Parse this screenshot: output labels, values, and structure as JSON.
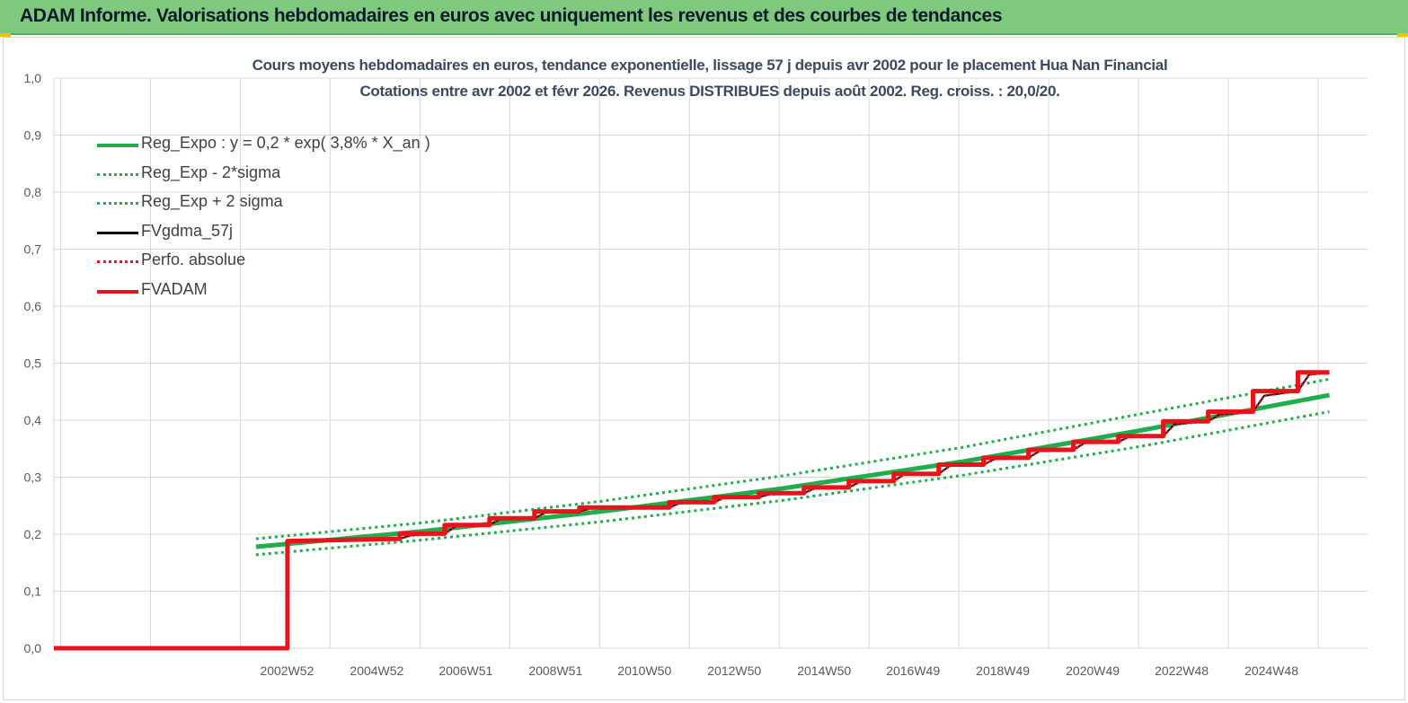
{
  "header": {
    "title": "ADAM Informe. Valorisations hebdomadaires en euros avec uniquement les revenus et des courbes de tendances"
  },
  "chart_data": {
    "type": "line",
    "title": "Cours moyens hebdomadaires en euros, tendance exponentielle, lissage 57 j depuis avr 2002 pour le placement Hua Nan Financial",
    "subtitle": "Cotations entre avr 2002 et févr 2026. Revenus DISTRIBUES depuis août 2002. Reg. croiss. : 20,0/20.",
    "xlabel": "",
    "ylabel": "",
    "ylim": [
      0,
      1
    ],
    "yticks": [
      "0,0",
      "0,1",
      "0,2",
      "0,3",
      "0,4",
      "0,5",
      "0,6",
      "0,7",
      "0,8",
      "0,9",
      "1,0"
    ],
    "xlim": [
      1997.8,
      2027.05
    ],
    "xticks": [
      {
        "x": 2002.99,
        "label": "2002W52"
      },
      {
        "x": 2004.99,
        "label": "2004W52"
      },
      {
        "x": 2006.97,
        "label": "2006W51"
      },
      {
        "x": 2008.97,
        "label": "2008W51"
      },
      {
        "x": 2010.95,
        "label": "2010W50"
      },
      {
        "x": 2012.95,
        "label": "2012W50"
      },
      {
        "x": 2014.95,
        "label": "2014W50"
      },
      {
        "x": 2016.93,
        "label": "2016W49"
      },
      {
        "x": 2018.93,
        "label": "2018W49"
      },
      {
        "x": 2020.93,
        "label": "2020W49"
      },
      {
        "x": 2022.91,
        "label": "2022W48"
      },
      {
        "x": 2024.91,
        "label": "2024W48"
      }
    ],
    "grid": true,
    "legend_position": "top-left",
    "series": [
      {
        "name": "Reg_Expo : y = 0,2 * exp( 3,8% *  X_an )",
        "color": "#1fae4b",
        "style": "solid-thick",
        "points": [
          [
            2002.3,
            0.178
          ],
          [
            2006,
            0.205
          ],
          [
            2010,
            0.24
          ],
          [
            2014,
            0.28
          ],
          [
            2018,
            0.327
          ],
          [
            2022,
            0.382
          ],
          [
            2026.2,
            0.444
          ]
        ]
      },
      {
        "name": "Reg_Exp - 2*sigma",
        "color": "#1fae4b",
        "style": "dotted",
        "points": [
          [
            2002.3,
            0.164
          ],
          [
            2006,
            0.19
          ],
          [
            2010,
            0.222
          ],
          [
            2014,
            0.259
          ],
          [
            2018,
            0.303
          ],
          [
            2022,
            0.354
          ],
          [
            2026.2,
            0.415
          ]
        ]
      },
      {
        "name": "Reg_Exp + 2 sigma",
        "color": "#1fae4b",
        "style": "dotted",
        "points": [
          [
            2002.3,
            0.192
          ],
          [
            2006,
            0.22
          ],
          [
            2010,
            0.258
          ],
          [
            2014,
            0.302
          ],
          [
            2018,
            0.352
          ],
          [
            2022,
            0.411
          ],
          [
            2026.2,
            0.472
          ]
        ]
      },
      {
        "name": "FVgdma_57j",
        "color": "#000000",
        "style": "solid",
        "points": [
          [
            1997.8,
            0
          ],
          [
            2003.0,
            0
          ],
          [
            2003.0,
            0.188
          ],
          [
            2005.5,
            0.192
          ],
          [
            2005.75,
            0.198
          ],
          [
            2006.5,
            0.201
          ],
          [
            2006.75,
            0.214
          ],
          [
            2007.5,
            0.216
          ],
          [
            2007.75,
            0.227
          ],
          [
            2008.5,
            0.228
          ],
          [
            2008.75,
            0.238
          ],
          [
            2009.5,
            0.24
          ],
          [
            2009.75,
            0.245
          ],
          [
            2011.5,
            0.247
          ],
          [
            2011.75,
            0.255
          ],
          [
            2012.5,
            0.256
          ],
          [
            2012.75,
            0.265
          ],
          [
            2013.5,
            0.265
          ],
          [
            2013.75,
            0.27
          ],
          [
            2014.5,
            0.272
          ],
          [
            2014.75,
            0.281
          ],
          [
            2015.5,
            0.282
          ],
          [
            2015.75,
            0.292
          ],
          [
            2016.5,
            0.293
          ],
          [
            2016.75,
            0.306
          ],
          [
            2017.5,
            0.306
          ],
          [
            2017.75,
            0.32
          ],
          [
            2018.5,
            0.322
          ],
          [
            2018.75,
            0.332
          ],
          [
            2019.5,
            0.334
          ],
          [
            2019.75,
            0.346
          ],
          [
            2020.5,
            0.348
          ],
          [
            2020.75,
            0.36
          ],
          [
            2021.5,
            0.362
          ],
          [
            2021.75,
            0.371
          ],
          [
            2022.5,
            0.372
          ],
          [
            2022.75,
            0.393
          ],
          [
            2023.5,
            0.398
          ],
          [
            2023.75,
            0.41
          ],
          [
            2024.5,
            0.415
          ],
          [
            2024.75,
            0.443
          ],
          [
            2025.5,
            0.451
          ],
          [
            2025.75,
            0.48
          ],
          [
            2026.2,
            0.484
          ]
        ]
      },
      {
        "name": "Perfo. absolue",
        "color": "#e8141c",
        "style": "dotted",
        "points": [
          [
            2003.0,
            0.188
          ],
          [
            2005.5,
            0.192
          ],
          [
            2005.75,
            0.198
          ],
          [
            2006.5,
            0.201
          ],
          [
            2006.75,
            0.214
          ],
          [
            2007.5,
            0.216
          ],
          [
            2007.75,
            0.227
          ],
          [
            2008.5,
            0.228
          ],
          [
            2008.75,
            0.238
          ],
          [
            2009.5,
            0.24
          ],
          [
            2009.75,
            0.245
          ],
          [
            2011.5,
            0.247
          ],
          [
            2011.75,
            0.255
          ],
          [
            2012.5,
            0.256
          ],
          [
            2012.75,
            0.265
          ],
          [
            2013.5,
            0.265
          ],
          [
            2013.75,
            0.27
          ],
          [
            2014.5,
            0.272
          ],
          [
            2014.75,
            0.281
          ],
          [
            2015.5,
            0.282
          ],
          [
            2015.75,
            0.292
          ],
          [
            2016.5,
            0.293
          ],
          [
            2016.75,
            0.306
          ],
          [
            2017.5,
            0.306
          ],
          [
            2017.75,
            0.32
          ],
          [
            2018.5,
            0.322
          ],
          [
            2018.75,
            0.332
          ],
          [
            2019.5,
            0.334
          ],
          [
            2019.75,
            0.346
          ],
          [
            2020.5,
            0.348
          ],
          [
            2020.75,
            0.36
          ],
          [
            2021.5,
            0.362
          ],
          [
            2021.75,
            0.371
          ],
          [
            2022.5,
            0.372
          ],
          [
            2022.75,
            0.393
          ],
          [
            2023.5,
            0.398
          ],
          [
            2023.75,
            0.41
          ],
          [
            2024.5,
            0.415
          ],
          [
            2024.75,
            0.443
          ],
          [
            2025.5,
            0.451
          ],
          [
            2025.75,
            0.48
          ],
          [
            2026.2,
            0.484
          ]
        ]
      },
      {
        "name": "FVADAM",
        "color": "#e8141c",
        "style": "solid-thick",
        "points": [
          [
            1997.8,
            0
          ],
          [
            2003.0,
            0
          ],
          [
            2003.0,
            0.188
          ],
          [
            2005.5,
            0.192
          ],
          [
            2005.5,
            0.201
          ],
          [
            2006.5,
            0.201
          ],
          [
            2006.5,
            0.216
          ],
          [
            2007.5,
            0.216
          ],
          [
            2007.5,
            0.228
          ],
          [
            2008.5,
            0.228
          ],
          [
            2008.5,
            0.24
          ],
          [
            2009.5,
            0.24
          ],
          [
            2009.5,
            0.247
          ],
          [
            2011.5,
            0.247
          ],
          [
            2011.5,
            0.256
          ],
          [
            2012.5,
            0.256
          ],
          [
            2012.5,
            0.265
          ],
          [
            2013.5,
            0.265
          ],
          [
            2013.5,
            0.272
          ],
          [
            2014.5,
            0.272
          ],
          [
            2014.5,
            0.282
          ],
          [
            2015.5,
            0.282
          ],
          [
            2015.5,
            0.293
          ],
          [
            2016.5,
            0.293
          ],
          [
            2016.5,
            0.306
          ],
          [
            2017.5,
            0.306
          ],
          [
            2017.5,
            0.322
          ],
          [
            2018.5,
            0.322
          ],
          [
            2018.5,
            0.334
          ],
          [
            2019.5,
            0.334
          ],
          [
            2019.5,
            0.348
          ],
          [
            2020.5,
            0.348
          ],
          [
            2020.5,
            0.362
          ],
          [
            2021.5,
            0.362
          ],
          [
            2021.5,
            0.372
          ],
          [
            2022.5,
            0.372
          ],
          [
            2022.5,
            0.398
          ],
          [
            2023.5,
            0.398
          ],
          [
            2023.5,
            0.415
          ],
          [
            2024.5,
            0.415
          ],
          [
            2024.5,
            0.451
          ],
          [
            2025.5,
            0.451
          ],
          [
            2025.5,
            0.484
          ],
          [
            2026.2,
            0.484
          ]
        ]
      }
    ]
  }
}
